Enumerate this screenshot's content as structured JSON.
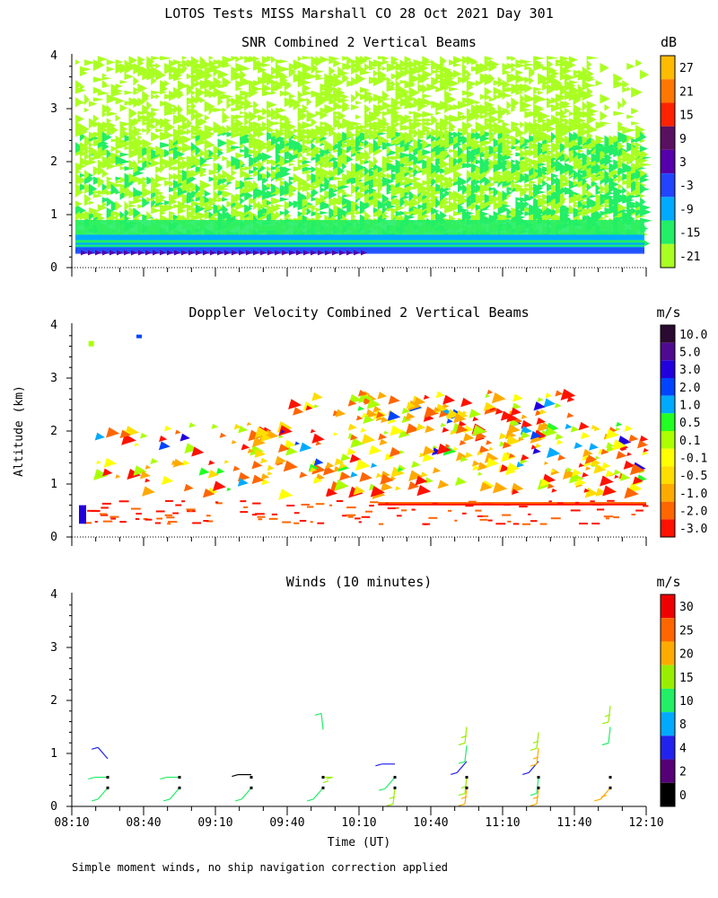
{
  "figure_title": "LOTOS Tests MISS Marshall CO  28 Oct 2021 Day 301",
  "y_axis_label": "Altitude (km)",
  "x_axis_label": "Time (UT)",
  "time_ticks": [
    "08:10",
    "08:40",
    "09:10",
    "09:40",
    "10:10",
    "10:40",
    "11:10",
    "11:40",
    "12:10"
  ],
  "altitude_ticks": [
    "0",
    "1",
    "2",
    "3",
    "4"
  ],
  "footnote": "Simple moment winds, no ship navigation correction applied",
  "chart_data": [
    {
      "type": "heatmap",
      "title": "SNR Combined 2 Vertical Beams",
      "xlim_minutes_after_0810": [
        0,
        240
      ],
      "ylim_km": [
        0,
        4
      ],
      "colorbar_unit": "dB",
      "colorbar_labels": [
        "27",
        "21",
        "15",
        "9",
        "3",
        "-3",
        "-9",
        "-15",
        "-21"
      ],
      "colorbar_colors": [
        "#ffbb00",
        "#ff7700",
        "#ff2200",
        "#5a1060",
        "#5500aa",
        "#2244ff",
        "#00aaff",
        "#22ee66",
        "#aaff22"
      ],
      "description_layers": [
        {
          "alt_km": [
            0.25,
            0.38
          ],
          "level": "-3",
          "color": "#2233dd"
        },
        {
          "alt_km": [
            0.38,
            0.62
          ],
          "level": "-9",
          "color": "#00aaff"
        },
        {
          "alt_km": [
            0.62,
            2.8
          ],
          "level": "-15",
          "color": "#22ee66"
        },
        {
          "alt_km": [
            0.6,
            4.0
          ],
          "level": "-21",
          "color": "#aaff22"
        }
      ]
    },
    {
      "type": "heatmap",
      "title": "Doppler Velocity Combined 2 Vertical Beams",
      "xlim_minutes_after_0810": [
        0,
        240
      ],
      "ylim_km": [
        0,
        4
      ],
      "colorbar_unit": "m/s",
      "colorbar_labels": [
        "10.0",
        "5.0",
        "3.0",
        "2.0",
        "1.0",
        "0.5",
        "0.1",
        "-0.1",
        "-0.5",
        "-1.0",
        "-2.0",
        "-3.0"
      ],
      "colorbar_colors": [
        "#2a0a30",
        "#500a90",
        "#2200dd",
        "#0044ff",
        "#00aaff",
        "#22ff22",
        "#aaff00",
        "#ffff00",
        "#ffdd00",
        "#ffaa00",
        "#ff6600",
        "#ff1100"
      ]
    },
    {
      "type": "wind_barbs",
      "title": "Winds (10 minutes)",
      "xlim_minutes_after_0810": [
        0,
        240
      ],
      "ylim_km": [
        0,
        4
      ],
      "colorbar_unit": "m/s",
      "colorbar_labels": [
        "30",
        "25",
        "20",
        "15",
        "10",
        "8",
        "4",
        "2",
        "0"
      ],
      "colorbar_colors": [
        "#ee0000",
        "#ff6600",
        "#ffaa00",
        "#99ee00",
        "#22ee66",
        "#00aaff",
        "#2222ee",
        "#550077",
        "#000000"
      ],
      "profiles": [
        {
          "time_min": 15,
          "winds": [
            {
              "alt_km": 0.35,
              "speed_ms": 12,
              "dir": "sw",
              "color": "#22ee66"
            },
            {
              "alt_km": 0.55,
              "speed_ms": 13,
              "dir": "w",
              "color": "#22ee66"
            },
            {
              "alt_km": 0.9,
              "speed_ms": 4,
              "dir": "nw",
              "color": "#2222ee"
            }
          ]
        },
        {
          "time_min": 45,
          "winds": [
            {
              "alt_km": 0.35,
              "speed_ms": 12,
              "dir": "sw",
              "color": "#22ee66"
            },
            {
              "alt_km": 0.55,
              "speed_ms": 13,
              "dir": "w",
              "color": "#22ee66"
            }
          ]
        },
        {
          "time_min": 75,
          "winds": [
            {
              "alt_km": 0.35,
              "speed_ms": 13,
              "dir": "sw",
              "color": "#22ee66"
            },
            {
              "alt_km": 0.6,
              "speed_ms": 1,
              "dir": "w",
              "color": "#000000"
            }
          ]
        },
        {
          "time_min": 105,
          "winds": [
            {
              "alt_km": 0.35,
              "speed_ms": 12,
              "dir": "sw",
              "color": "#22ee66"
            },
            {
              "alt_km": 0.55,
              "speed_ms": 16,
              "dir": "e",
              "color": "#99ee00"
            },
            {
              "alt_km": 1.45,
              "speed_ms": 11,
              "dir": "n",
              "color": "#22ee66"
            }
          ]
        },
        {
          "time_min": 135,
          "winds": [
            {
              "alt_km": 0.35,
              "speed_ms": 17,
              "dir": "s",
              "color": "#99ee00"
            },
            {
              "alt_km": 0.55,
              "speed_ms": 12,
              "dir": "sw",
              "color": "#22ee66"
            },
            {
              "alt_km": 0.8,
              "speed_ms": 5,
              "dir": "w",
              "color": "#2222ee"
            }
          ]
        },
        {
          "time_min": 165,
          "winds": [
            {
              "alt_km": 0.35,
              "speed_ms": 22,
              "dir": "s",
              "color": "#ffaa00"
            },
            {
              "alt_km": 0.55,
              "speed_ms": 17,
              "dir": "s",
              "color": "#99ee00"
            },
            {
              "alt_km": 0.85,
              "speed_ms": 5,
              "dir": "sw",
              "color": "#2222ee"
            },
            {
              "alt_km": 1.15,
              "speed_ms": 11,
              "dir": "s",
              "color": "#22ee66"
            },
            {
              "alt_km": 1.5,
              "speed_ms": 16,
              "dir": "s",
              "color": "#99ee00"
            }
          ]
        },
        {
          "time_min": 195,
          "winds": [
            {
              "alt_km": 0.35,
              "speed_ms": 22,
              "dir": "s",
              "color": "#ffaa00"
            },
            {
              "alt_km": 0.55,
              "speed_ms": 14,
              "dir": "s",
              "color": "#22ee66"
            },
            {
              "alt_km": 0.85,
              "speed_ms": 5,
              "dir": "sw",
              "color": "#2222ee"
            },
            {
              "alt_km": 1.1,
              "speed_ms": 22,
              "dir": "s",
              "color": "#ffaa00"
            },
            {
              "alt_km": 1.4,
              "speed_ms": 15,
              "dir": "s",
              "color": "#99ee00"
            }
          ]
        },
        {
          "time_min": 225,
          "winds": [
            {
              "alt_km": 0.35,
              "speed_ms": 21,
              "dir": "sw",
              "color": "#ffaa00"
            },
            {
              "alt_km": 1.5,
              "speed_ms": 13,
              "dir": "s",
              "color": "#22ee66"
            },
            {
              "alt_km": 1.9,
              "speed_ms": 17,
              "dir": "s",
              "color": "#99ee00"
            }
          ]
        }
      ]
    }
  ]
}
